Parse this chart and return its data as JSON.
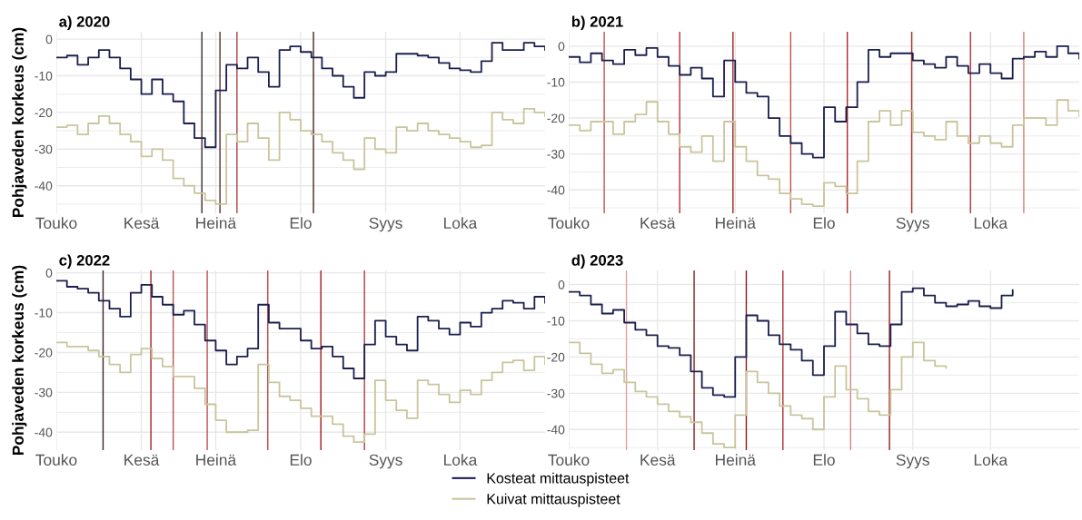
{
  "chart_data": [
    {
      "type": "step",
      "title": "a) 2020",
      "ylabel": "Pohjaveden korkeus (cm)",
      "categories": [
        "Touko",
        null,
        null,
        null,
        null,
        null,
        null,
        null,
        "Kesä",
        null,
        null,
        null,
        null,
        null,
        null,
        "Heinä",
        null,
        null,
        null,
        null,
        null,
        null,
        null,
        "Elo",
        null,
        null,
        null,
        null,
        null,
        null,
        null,
        "Syys",
        null,
        null,
        null,
        null,
        null,
        null,
        "Loka",
        null,
        null,
        null,
        null,
        null,
        null,
        null,
        null
      ],
      "series": [
        {
          "color": "#1b1f4e",
          "values": [
            -5,
            -4.5,
            -7,
            -5,
            -3,
            -5,
            -8,
            -11,
            -15,
            -11,
            -15,
            -17,
            -23,
            -27,
            -29.5,
            -14,
            -7,
            -8,
            -5,
            -9,
            -13,
            -3,
            -2,
            -3.5,
            -5,
            -8,
            -10,
            -13,
            -16,
            -9,
            -10,
            -9,
            -4,
            -4,
            -4.5,
            -5,
            -6.5,
            -8,
            -8.5,
            -9,
            -6,
            -1,
            -3,
            -3,
            -1,
            -2,
            -3
          ]
        },
        {
          "color": "#c9c59c",
          "values": [
            -24,
            -23.5,
            -26,
            -23,
            -21,
            -23,
            -26,
            -28,
            -32,
            -30,
            -33,
            -38,
            -40,
            -42,
            -44,
            -45,
            -26,
            -28,
            -23,
            -27,
            -33,
            -20,
            -22,
            -25,
            -26,
            -28,
            -31,
            -33,
            -35.5,
            -27,
            -30,
            -31,
            -24,
            -25,
            -23,
            -25,
            -26,
            -27,
            -28,
            -29.5,
            -29,
            -20,
            -22,
            -23,
            -19,
            -20,
            -21
          ]
        }
      ],
      "ylim": [
        -47.5,
        2
      ],
      "yticks": [
        {
          "value": -45,
          "label": null
        },
        -40,
        {
          "value": -35,
          "label": null
        },
        -30,
        {
          "value": -25,
          "label": null
        },
        -20,
        {
          "value": -15,
          "label": null
        },
        -10,
        {
          "value": -5,
          "label": null
        },
        0
      ],
      "grid": true,
      "line_style": "solid",
      "marker": "none"
    },
    {
      "type": "step",
      "title": "b) 2021",
      "categories": [
        "Touko",
        null,
        null,
        null,
        null,
        null,
        null,
        null,
        "Kesä",
        null,
        null,
        null,
        null,
        null,
        null,
        "Heinä",
        null,
        null,
        null,
        null,
        null,
        null,
        null,
        "Elo",
        null,
        null,
        null,
        null,
        null,
        null,
        null,
        "Syys",
        null,
        null,
        null,
        null,
        null,
        null,
        "Loka",
        null,
        null,
        null,
        null,
        null,
        null,
        null,
        null
      ],
      "series": [
        {
          "color": "#1b1f4e",
          "values": [
            -3,
            -4.5,
            -2,
            -4,
            -5,
            -1,
            -2.5,
            -0.5,
            -3,
            -5.5,
            -8,
            -6,
            -9,
            -14,
            -4,
            -10,
            -13,
            -14,
            -20,
            -25,
            -27,
            -30,
            -31,
            -17,
            -21,
            -17,
            -10,
            -1,
            -3,
            -2,
            -2,
            -4,
            -5,
            -6,
            -3,
            -5.5,
            -7.5,
            -5,
            -7.5,
            -9,
            -3.5,
            -3,
            -1.5,
            -3,
            0,
            -2,
            -3.5
          ]
        },
        {
          "color": "#c9c59c",
          "values": [
            -22,
            -23.5,
            -21,
            -21,
            -24.5,
            -21,
            -19,
            -15.5,
            -21,
            -24.5,
            -28,
            -29.5,
            -25,
            -32,
            -21,
            -28,
            -32,
            -36,
            -37,
            -41,
            -42.5,
            -44,
            -44.5,
            -38,
            -39,
            -41,
            -32,
            -21,
            -18,
            -22,
            -18,
            -24,
            -25,
            -26,
            -21,
            -25,
            -27,
            -25,
            -27,
            -28,
            -22,
            -20,
            -20,
            -22,
            -15,
            -18,
            -19.5
          ]
        }
      ],
      "ylim": [
        -46.5,
        4
      ],
      "yticks": [
        {
          "value": -45,
          "label": null
        },
        -40,
        {
          "value": -35,
          "label": null
        },
        -30,
        {
          "value": -25,
          "label": null
        },
        -20,
        {
          "value": -15,
          "label": null
        },
        -10,
        {
          "value": -5,
          "label": null
        },
        0
      ],
      "grid": true,
      "line_style": "solid",
      "marker": "none"
    },
    {
      "type": "step",
      "title": "c) 2022",
      "ylabel": "Pohjaveden korkeus (cm)",
      "categories": [
        "Touko",
        null,
        null,
        null,
        null,
        null,
        null,
        null,
        "Kesä",
        null,
        null,
        null,
        null,
        null,
        null,
        "Heinä",
        null,
        null,
        null,
        null,
        null,
        null,
        null,
        "Elo",
        null,
        null,
        null,
        null,
        null,
        null,
        null,
        "Syys",
        null,
        null,
        null,
        null,
        null,
        null,
        "Loka",
        null,
        null,
        null,
        null,
        null,
        null,
        null,
        null
      ],
      "series": [
        {
          "color": "#1b1f4e",
          "values": [
            -2,
            -3.5,
            -4,
            -5,
            -7,
            -9,
            -11,
            -5,
            -3,
            -6,
            -8,
            -10.5,
            -9.5,
            -13,
            -17,
            -19.5,
            -23,
            -21,
            -19,
            -8,
            -12.5,
            -14,
            -14,
            -17,
            -19,
            -18.5,
            -21,
            -24,
            -26.5,
            -18,
            -12,
            -16,
            -18,
            -19.5,
            -11,
            -12,
            -14,
            -15.5,
            -12.5,
            -13.5,
            -10,
            -9,
            -7,
            -7.5,
            -9,
            -6,
            -7.5
          ]
        },
        {
          "color": "#c9c59c",
          "values": [
            -17.5,
            -18.5,
            -18.5,
            -19.5,
            -21,
            -23,
            -25,
            -20.5,
            -19,
            -21.5,
            -23.5,
            -26,
            -26,
            -29,
            -33,
            -37,
            -40,
            -40,
            -39.5,
            -23,
            -27.5,
            -31,
            -32,
            -34,
            -36,
            -36,
            -38,
            -41,
            -42.5,
            -40.5,
            -27,
            -32,
            -34.5,
            -36.5,
            -27,
            -28,
            -30.5,
            -32.5,
            -29.5,
            -30.5,
            -27,
            -25,
            -22.5,
            -22,
            -24.5,
            -21,
            -23
          ]
        }
      ],
      "ylim": [
        -44.5,
        0.6
      ],
      "yticks": [
        -40,
        {
          "value": -35,
          "label": null
        },
        -30,
        {
          "value": -25,
          "label": null
        },
        -20,
        {
          "value": -15,
          "label": null
        },
        -10,
        {
          "value": -5,
          "label": null
        },
        0
      ],
      "grid": true,
      "line_style": "solid",
      "marker": "none"
    },
    {
      "type": "step",
      "title": "d) 2023",
      "legend": "bottom",
      "categories": [
        "Touko",
        null,
        null,
        null,
        null,
        null,
        null,
        null,
        "Kesä",
        null,
        null,
        null,
        null,
        null,
        null,
        "Heinä",
        null,
        null,
        null,
        null,
        null,
        null,
        null,
        "Elo",
        null,
        null,
        null,
        null,
        null,
        null,
        null,
        "Syys",
        null,
        null,
        null,
        null,
        null,
        null,
        "Loka",
        null,
        null,
        null,
        null,
        null,
        null,
        null,
        null
      ],
      "series": [
        {
          "name": "Kosteat mittauspisteet",
          "color": "#1b1f4e",
          "values": [
            -2,
            -3,
            -5.5,
            -8,
            -7,
            -10.5,
            -12.5,
            -14,
            -17,
            -17.5,
            -19.5,
            -24,
            -28.5,
            -30.5,
            -31,
            -20,
            -8.5,
            -10,
            -14,
            -16.5,
            -18,
            -21,
            -25,
            -17,
            -7.5,
            -11,
            -13.5,
            -16.5,
            -17,
            -11,
            -2,
            -1,
            -3,
            -5,
            -6,
            -5.5,
            -4.5,
            -6,
            -6.5,
            -3,
            -1.5,
            null,
            null,
            null,
            null,
            null,
            null
          ]
        },
        {
          "name": "Kuivat mittauspisteet",
          "color": "#c9c59c",
          "values": [
            -16,
            -19,
            -22,
            -24.5,
            -23.5,
            -27,
            -29.5,
            -31,
            -33,
            -35,
            -36.5,
            -38,
            -41,
            -44,
            -45,
            -36,
            -24,
            -27,
            -30,
            -33.5,
            -36,
            -37,
            -40,
            -31,
            -22.5,
            -29,
            -31.5,
            -35,
            -36,
            -29,
            -20,
            -16,
            -21,
            -22.5,
            -23,
            null,
            null,
            null,
            null,
            null,
            null,
            null,
            null,
            null,
            null,
            null,
            null
          ]
        }
      ],
      "ylim": [
        -45.7,
        3.9
      ],
      "yticks": [
        {
          "value": -45,
          "label": null
        },
        -40,
        {
          "value": -35,
          "label": null
        },
        -30,
        {
          "value": -25,
          "label": null
        },
        -20,
        {
          "value": -15,
          "label": null
        },
        -10,
        {
          "value": -5,
          "label": null
        },
        0
      ],
      "grid": true,
      "line_style": "solid",
      "marker": "none"
    }
  ]
}
